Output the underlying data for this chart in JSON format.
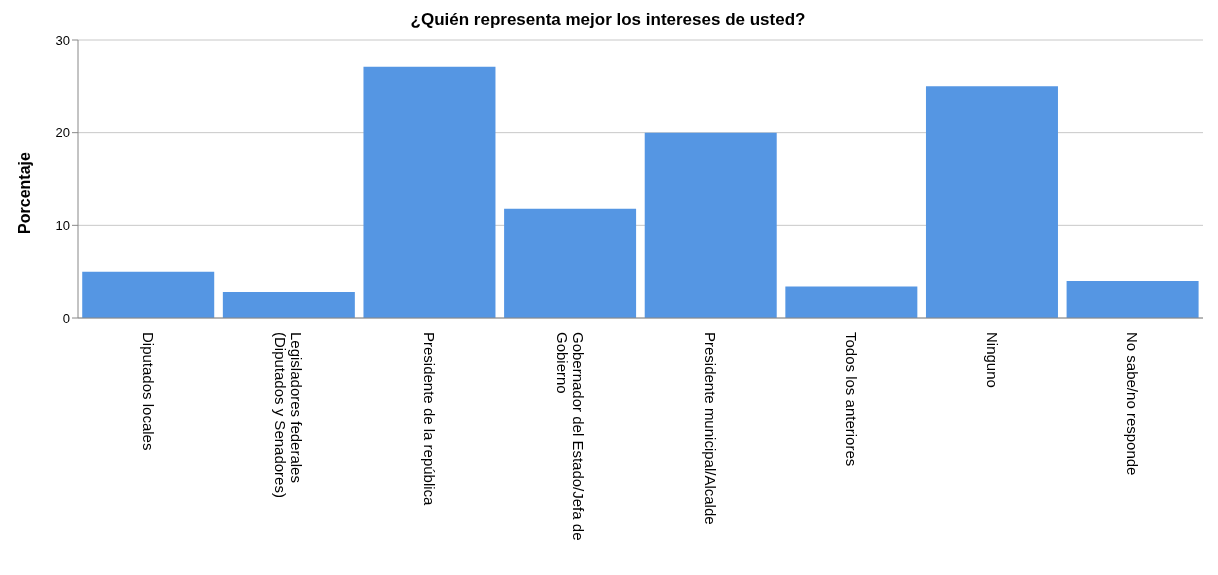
{
  "chart_data": {
    "type": "bar",
    "title": "¿Quién representa mejor los intereses de usted?",
    "ylabel": "Porcentaje",
    "categories": [
      "Diputados locales",
      "Legisladores federales (Diputados y Senadores)",
      "Presidente de la república",
      "Gobernador del Estado/Jefa de Gobierno",
      "Presidente municipal/Alcalde",
      "Todos los anteriores",
      "Ninguno",
      "No sabe/no responde"
    ],
    "values": [
      5.0,
      2.8,
      27.1,
      11.8,
      20.0,
      3.4,
      25.0,
      4.0
    ],
    "color": "#5596e3",
    "ylim": [
      0,
      30
    ],
    "yticks": [
      0,
      10,
      20,
      30
    ],
    "grid": "y",
    "legend": false
  }
}
